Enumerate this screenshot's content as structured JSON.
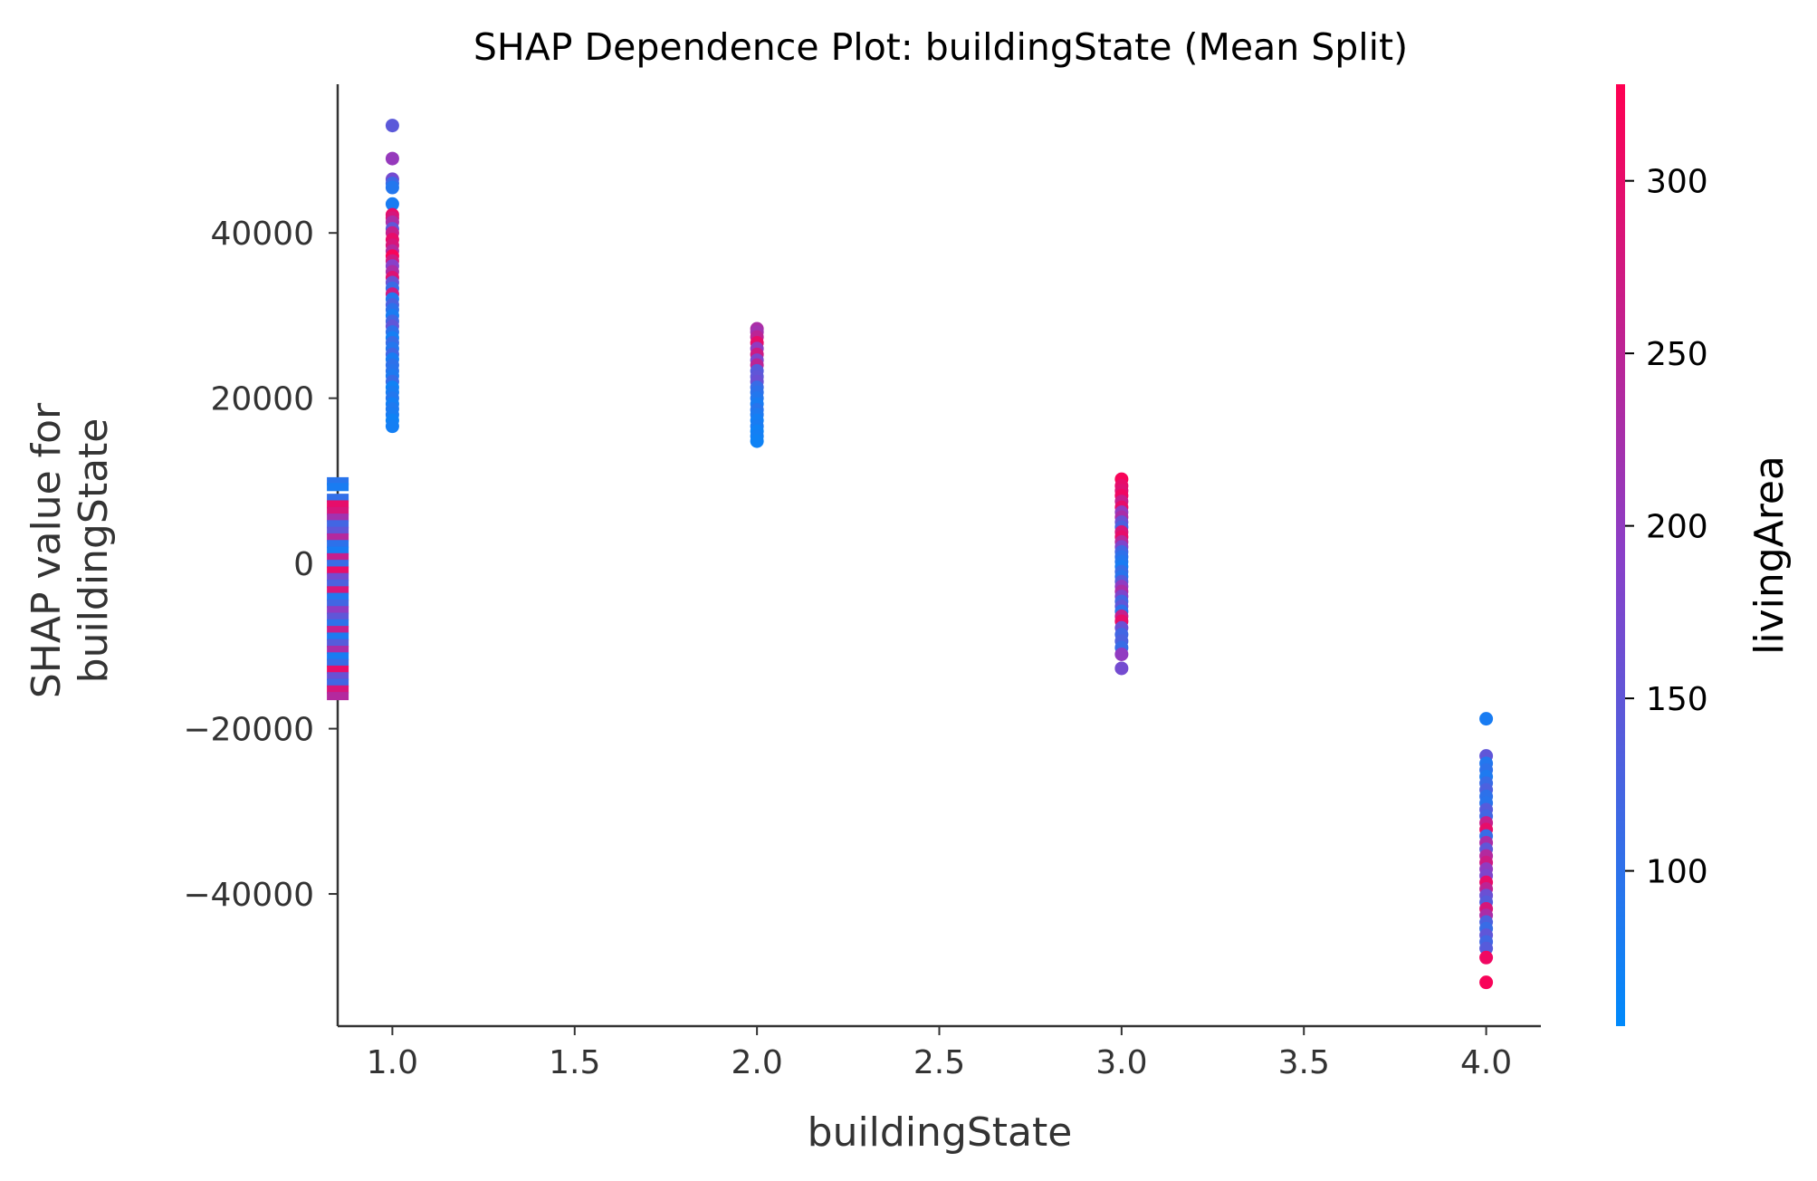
{
  "chart_data": {
    "type": "scatter",
    "title": "SHAP Dependence Plot: buildingState (Mean Split)",
    "xlabel": "buildingState",
    "ylabel_lines": [
      "SHAP value for",
      "buildingState"
    ],
    "xlim": [
      0.85,
      4.15
    ],
    "ylim": [
      -56000,
      58000
    ],
    "x_ticks": [
      1.0,
      1.5,
      2.0,
      2.5,
      3.0,
      3.5,
      4.0
    ],
    "x_tick_labels": [
      "1.0",
      "1.5",
      "2.0",
      "2.5",
      "3.0",
      "3.5",
      "4.0"
    ],
    "y_ticks": [
      40000,
      20000,
      0,
      -20000,
      -40000
    ],
    "y_tick_labels": [
      "40000",
      "20000",
      "0",
      "−20000",
      "−40000"
    ],
    "grid": false,
    "colorbar": {
      "label": "livingArea",
      "range": [
        55,
        328
      ],
      "ticks": [
        100,
        150,
        200,
        250,
        300
      ],
      "tick_labels": [
        "100",
        "150",
        "200",
        "250",
        "300"
      ],
      "color_low": "#008afb",
      "color_mid": "#8a3fc8",
      "color_high": "#ff0052"
    },
    "series": [
      {
        "x": 1.0,
        "points": [
          [
            53000,
            145
          ],
          [
            49000,
            205
          ],
          [
            46500,
            170
          ],
          [
            46000,
            115
          ],
          [
            45500,
            90
          ],
          [
            43500,
            80
          ],
          [
            42200,
            300
          ],
          [
            41800,
            280
          ],
          [
            41300,
            230
          ],
          [
            40500,
            150
          ],
          [
            40000,
            260
          ],
          [
            39200,
            300
          ],
          [
            38500,
            280
          ],
          [
            37800,
            240
          ],
          [
            37200,
            320
          ],
          [
            36600,
            270
          ],
          [
            36000,
            190
          ],
          [
            35300,
            230
          ],
          [
            34600,
            290
          ],
          [
            34000,
            160
          ],
          [
            33300,
            110
          ],
          [
            32600,
            270
          ],
          [
            32000,
            90
          ],
          [
            31300,
            130
          ],
          [
            30700,
            100
          ],
          [
            30000,
            80
          ],
          [
            29300,
            120
          ],
          [
            28700,
            150
          ],
          [
            28000,
            100
          ],
          [
            27300,
            75
          ],
          [
            26700,
            110
          ],
          [
            26000,
            90
          ],
          [
            25300,
            120
          ],
          [
            24700,
            80
          ],
          [
            24000,
            100
          ],
          [
            23300,
            95
          ],
          [
            22700,
            85
          ],
          [
            22000,
            110
          ],
          [
            21300,
            70
          ],
          [
            20700,
            80
          ],
          [
            20000,
            90
          ],
          [
            19300,
            75
          ],
          [
            18700,
            85
          ],
          [
            18000,
            80
          ],
          [
            17300,
            70
          ],
          [
            16600,
            75
          ]
        ]
      },
      {
        "x": 2.0,
        "points": [
          [
            28400,
            230
          ],
          [
            28000,
            220
          ],
          [
            27400,
            250
          ],
          [
            26700,
            300
          ],
          [
            26000,
            200
          ],
          [
            25300,
            270
          ],
          [
            24600,
            180
          ],
          [
            24000,
            250
          ],
          [
            23300,
            140
          ],
          [
            22600,
            150
          ],
          [
            22000,
            160
          ],
          [
            21300,
            110
          ],
          [
            20700,
            100
          ],
          [
            20000,
            90
          ],
          [
            19300,
            80
          ],
          [
            18600,
            95
          ],
          [
            18000,
            85
          ],
          [
            17300,
            75
          ],
          [
            16600,
            80
          ],
          [
            16000,
            70
          ],
          [
            15400,
            75
          ],
          [
            14800,
            70
          ]
        ]
      },
      {
        "x": 3.0,
        "points": [
          [
            10200,
            320
          ],
          [
            9400,
            300
          ],
          [
            8800,
            290
          ],
          [
            8200,
            310
          ],
          [
            7500,
            260
          ],
          [
            6800,
            300
          ],
          [
            6200,
            200
          ],
          [
            5600,
            230
          ],
          [
            5000,
            160
          ],
          [
            4400,
            130
          ],
          [
            3800,
            280
          ],
          [
            3200,
            300
          ],
          [
            2600,
            240
          ],
          [
            2000,
            180
          ],
          [
            1400,
            120
          ],
          [
            800,
            100
          ],
          [
            200,
            90
          ],
          [
            -400,
            80
          ],
          [
            -1000,
            110
          ],
          [
            -1600,
            95
          ],
          [
            -2200,
            140
          ],
          [
            -2800,
            200
          ],
          [
            -3400,
            230
          ],
          [
            -4000,
            180
          ],
          [
            -4600,
            120
          ],
          [
            -5200,
            150
          ],
          [
            -5800,
            100
          ],
          [
            -6400,
            260
          ],
          [
            -7000,
            300
          ],
          [
            -7800,
            160
          ],
          [
            -8600,
            120
          ],
          [
            -9400,
            130
          ],
          [
            -10200,
            110
          ],
          [
            -11000,
            200
          ],
          [
            -12700,
            170
          ]
        ]
      },
      {
        "x": 4.0,
        "points": [
          [
            -18800,
            80
          ],
          [
            -23300,
            150
          ],
          [
            -24200,
            90
          ],
          [
            -25000,
            100
          ],
          [
            -25800,
            85
          ],
          [
            -26600,
            110
          ],
          [
            -27400,
            130
          ],
          [
            -28200,
            100
          ],
          [
            -29000,
            95
          ],
          [
            -29800,
            140
          ],
          [
            -30600,
            120
          ],
          [
            -31400,
            260
          ],
          [
            -32200,
            300
          ],
          [
            -33000,
            110
          ],
          [
            -33800,
            230
          ],
          [
            -34600,
            150
          ],
          [
            -35400,
            240
          ],
          [
            -36200,
            270
          ],
          [
            -37000,
            200
          ],
          [
            -37800,
            180
          ],
          [
            -38600,
            300
          ],
          [
            -39400,
            250
          ],
          [
            -40200,
            160
          ],
          [
            -41000,
            140
          ],
          [
            -41800,
            280
          ],
          [
            -42600,
            230
          ],
          [
            -43400,
            130
          ],
          [
            -44200,
            110
          ],
          [
            -45000,
            150
          ],
          [
            -45800,
            120
          ],
          [
            -46600,
            140
          ],
          [
            -47700,
            310
          ],
          [
            -50700,
            320
          ]
        ]
      },
      {
        "x": 0.88,
        "marker": "bar",
        "points": [
          [
            10000,
            95
          ],
          [
            9300,
            80
          ],
          [
            8000,
            105
          ],
          [
            7200,
            300
          ],
          [
            6400,
            280
          ],
          [
            5600,
            220
          ],
          [
            4800,
            120
          ],
          [
            4000,
            150
          ],
          [
            3200,
            240
          ],
          [
            2400,
            100
          ],
          [
            1600,
            80
          ],
          [
            800,
            260
          ],
          [
            0,
            110
          ],
          [
            -800,
            300
          ],
          [
            -1600,
            170
          ],
          [
            -2400,
            130
          ],
          [
            -3200,
            280
          ],
          [
            -4000,
            90
          ],
          [
            -4800,
            120
          ],
          [
            -5600,
            200
          ],
          [
            -6400,
            150
          ],
          [
            -7200,
            100
          ],
          [
            -8000,
            260
          ],
          [
            -8800,
            85
          ],
          [
            -9600,
            140
          ],
          [
            -10400,
            230
          ],
          [
            -11200,
            80
          ],
          [
            -12000,
            110
          ],
          [
            -12800,
            300
          ],
          [
            -13600,
            160
          ],
          [
            -14400,
            120
          ],
          [
            -15200,
            280
          ],
          [
            -16000,
            240
          ]
        ]
      }
    ]
  }
}
